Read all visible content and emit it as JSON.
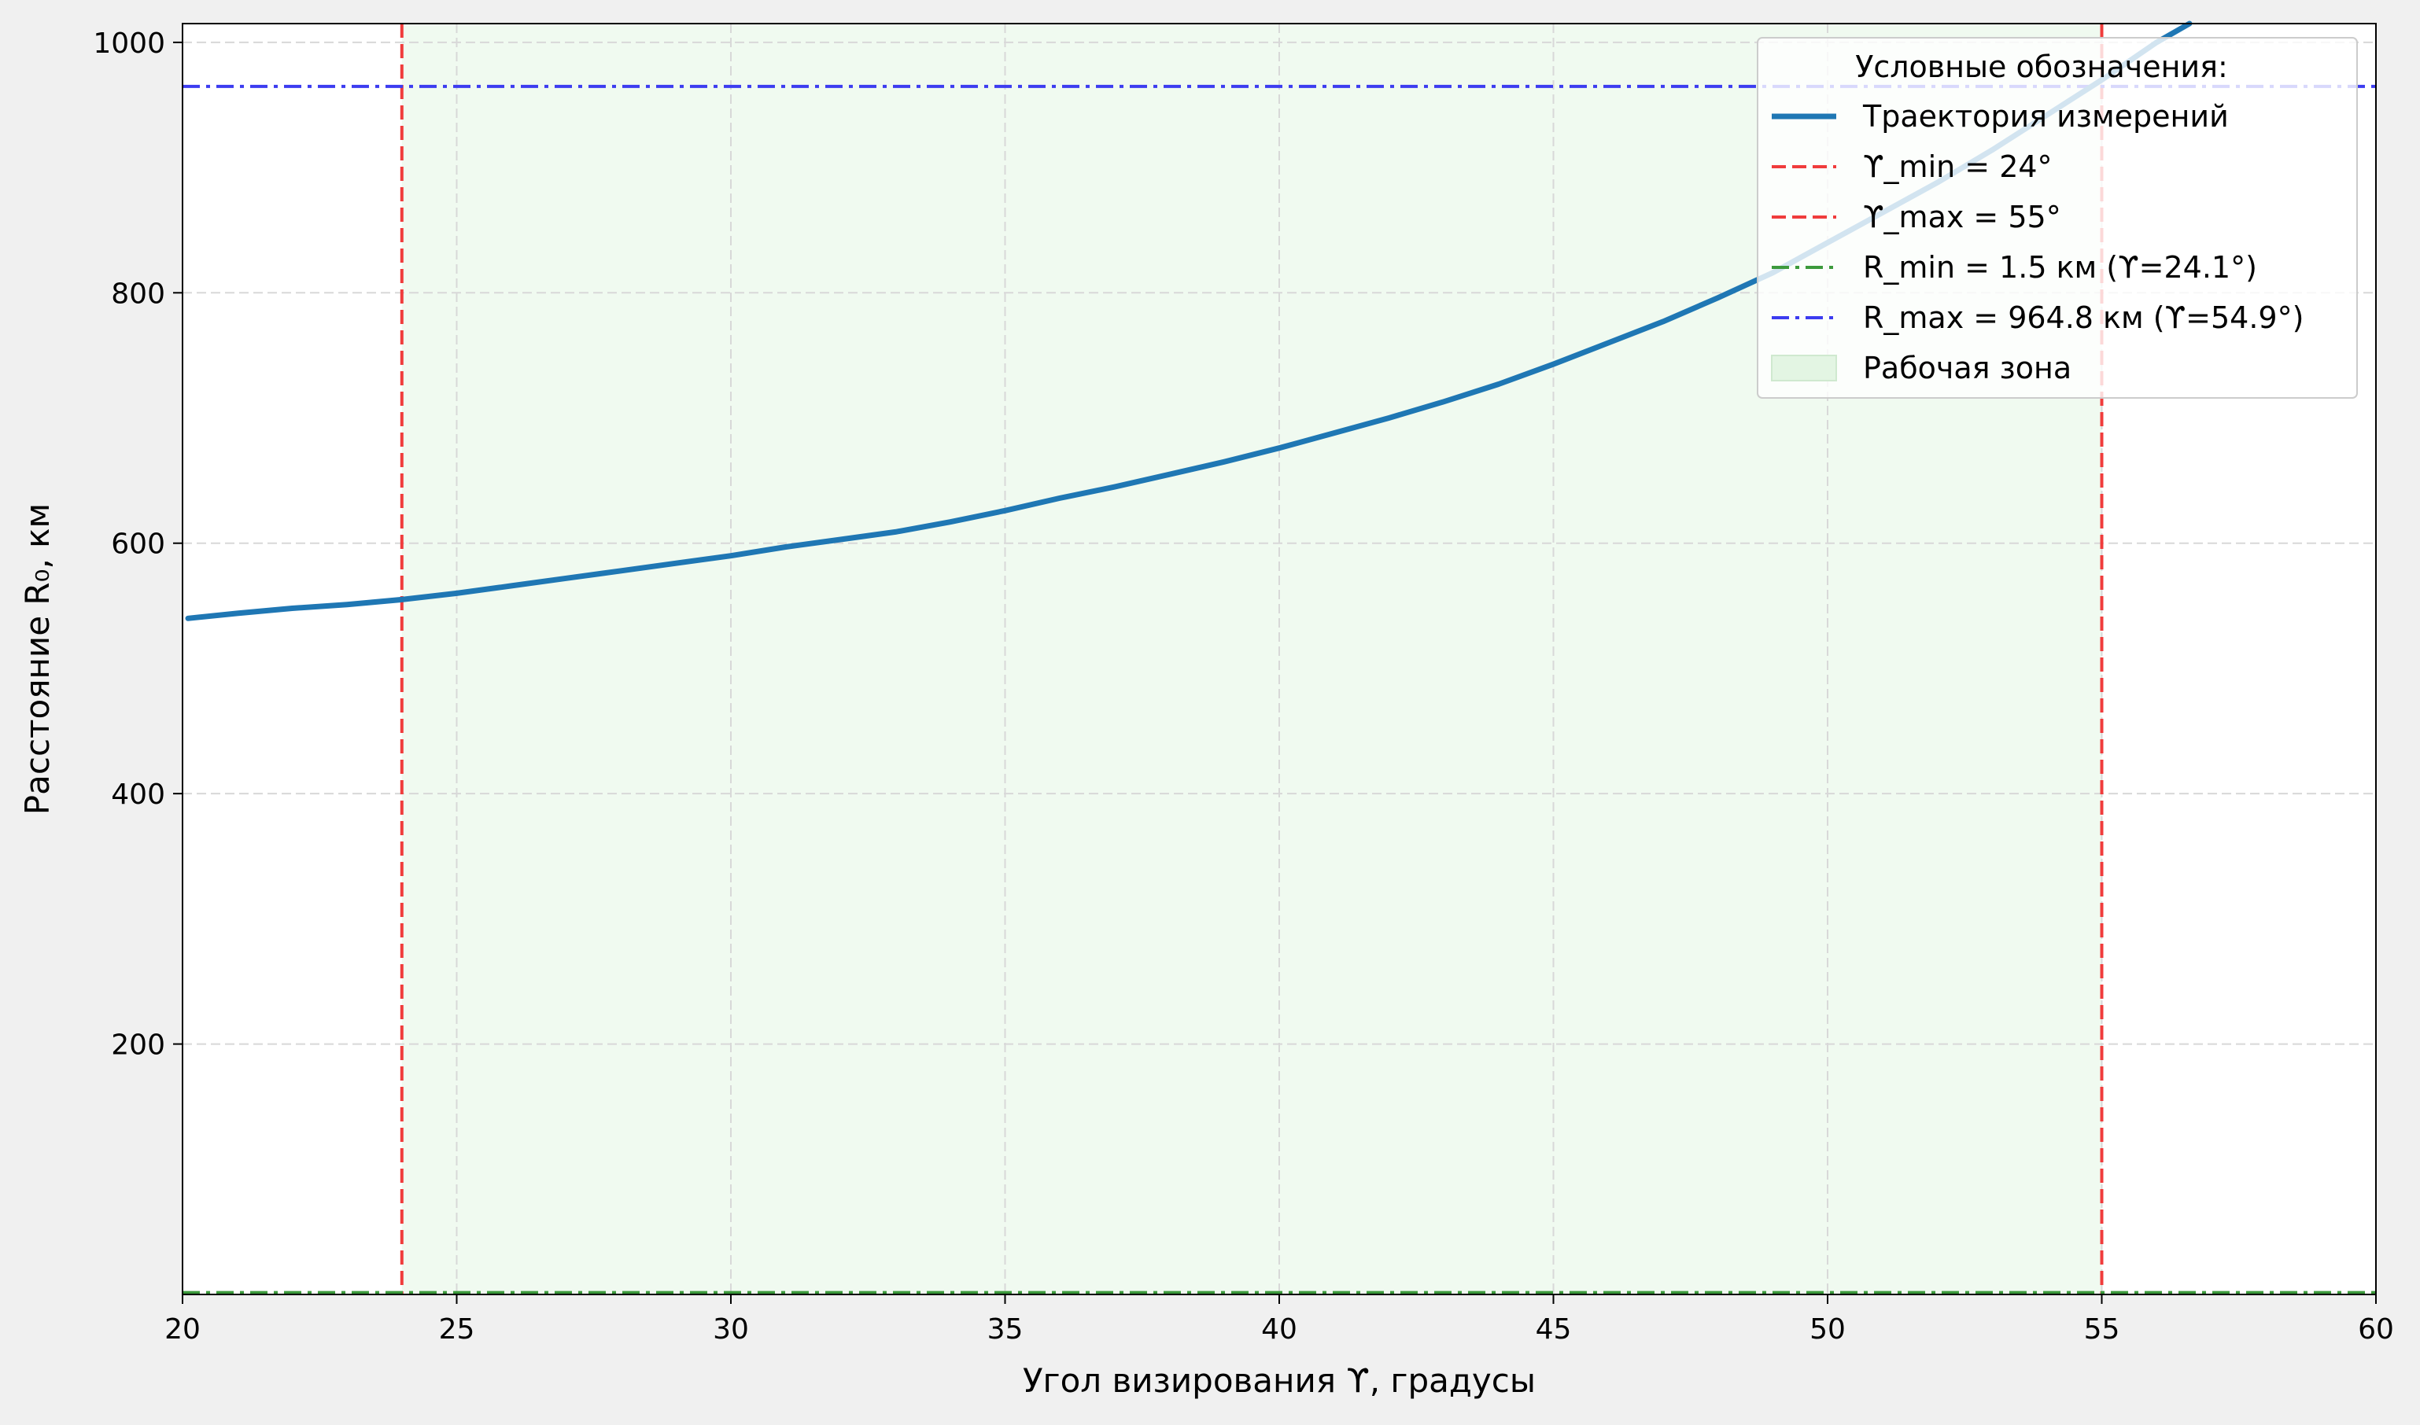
{
  "chart_data": {
    "type": "line",
    "title": "",
    "xlabel": "Угол визирования ϒ, градусы",
    "ylabel": "Расстояние R₀, км",
    "xlim": [
      20,
      60
    ],
    "ylim": [
      0,
      1015
    ],
    "xticks": [
      20,
      25,
      30,
      35,
      40,
      45,
      50,
      55,
      60
    ],
    "yticks": [
      200,
      400,
      600,
      800,
      1000
    ],
    "grid": true,
    "legend_position": "top-right",
    "legend_title": "Условные обозначения:",
    "series": [
      {
        "name": "Траектория измерений",
        "color": "#1f77b4",
        "x": [
          20.1,
          21,
          22,
          23,
          24,
          25,
          26,
          27,
          28,
          29,
          30,
          31,
          32,
          33,
          34,
          35,
          36,
          37,
          38,
          39,
          40,
          41,
          42,
          43,
          44,
          45,
          46,
          47,
          48,
          49,
          50,
          51,
          52,
          53,
          54,
          55,
          56,
          56.6
        ],
        "y": [
          540,
          544,
          548,
          551,
          555,
          560,
          566,
          572,
          578,
          584,
          590,
          597,
          603,
          609,
          617,
          626,
          636,
          645,
          655,
          665,
          676,
          688,
          700,
          713,
          727,
          743,
          760,
          777,
          796,
          816,
          840,
          864,
          888,
          914,
          942,
          970,
          1000,
          1015
        ]
      }
    ],
    "reference_lines": [
      {
        "label": "ϒ_min = 24°",
        "orientation": "vertical",
        "value": 24,
        "color": "#f03c3c",
        "style": "dashed"
      },
      {
        "label": "ϒ_max = 55°",
        "orientation": "vertical",
        "value": 55,
        "color": "#f03c3c",
        "style": "dashed"
      },
      {
        "label": "R_min = 1.5 км (ϒ=24.1°)",
        "orientation": "horizontal",
        "value": 1.5,
        "color": "#3c9a3c",
        "style": "dashdot"
      },
      {
        "label": "R_max = 964.8 км (ϒ=54.9°)",
        "orientation": "horizontal",
        "value": 964.8,
        "color": "#3c3cf0",
        "style": "dashdot"
      }
    ],
    "shaded_region": {
      "label": "Рабочая зона",
      "x_range": [
        24,
        55
      ],
      "color": "#f0faf0"
    }
  }
}
